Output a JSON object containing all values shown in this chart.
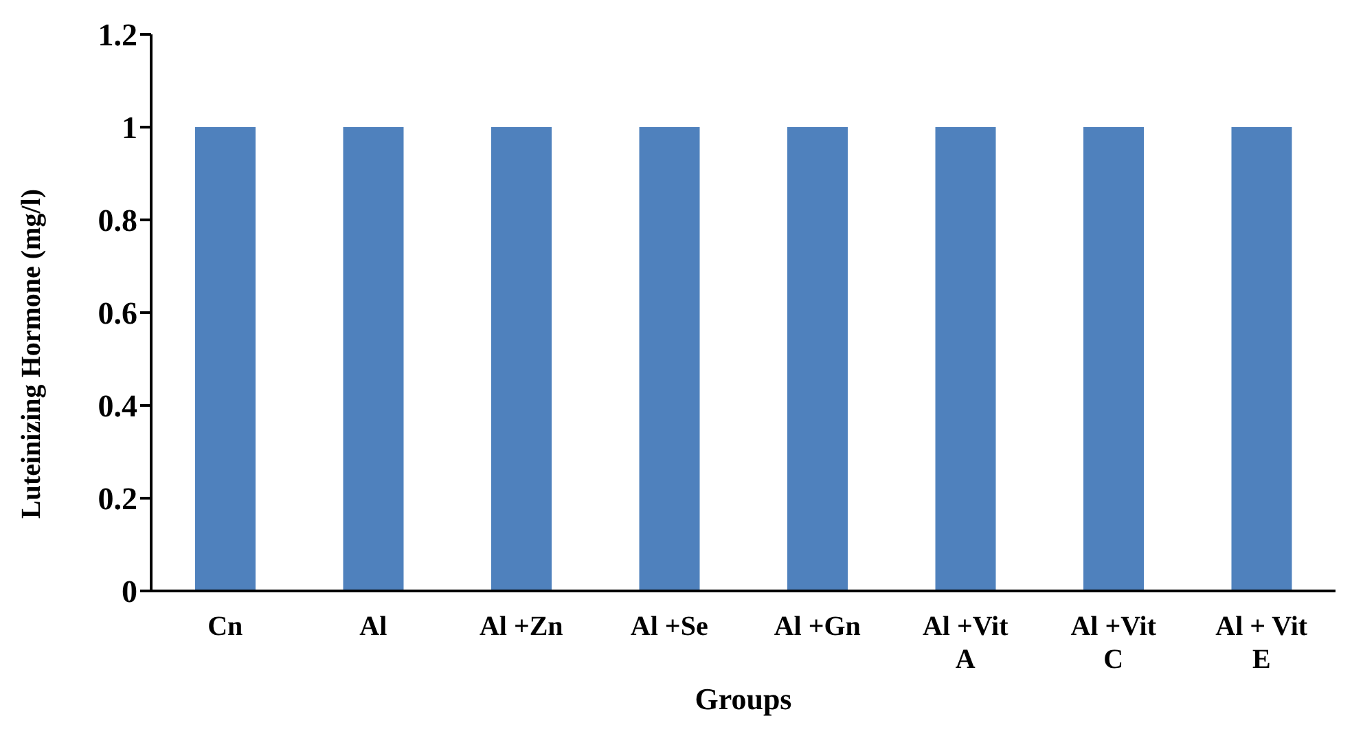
{
  "chart_data": {
    "type": "bar",
    "xlabel": "Groups",
    "ylabel": "Luteinizing Hormone (mg/l)",
    "categories": [
      "Cn",
      "Al",
      "Al +Zn",
      "Al +Se",
      "Al +Gn",
      "Al +Vit A",
      "Al +Vit C",
      "Al + Vit E"
    ],
    "values": [
      1,
      1,
      1,
      1,
      1,
      1,
      1,
      1
    ],
    "color": "#4f81bd",
    "ylim": [
      0,
      1.2
    ],
    "yticks": [
      0,
      0.2,
      0.4,
      0.6,
      0.8,
      1,
      1.2
    ],
    "grid": false,
    "legend": false
  }
}
